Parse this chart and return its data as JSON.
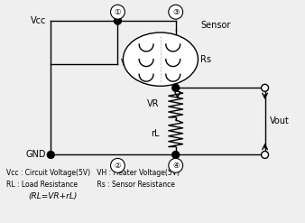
{
  "bg_color": "#efefef",
  "line_color": "black",
  "footnote_lines": [
    "Vcc : Circuit Voltage(5V)   VH : Heater Voltage(5V)",
    "RL : Load Resistance         Rs : Sensor Resistance",
    "(RL=VR+rL)"
  ]
}
